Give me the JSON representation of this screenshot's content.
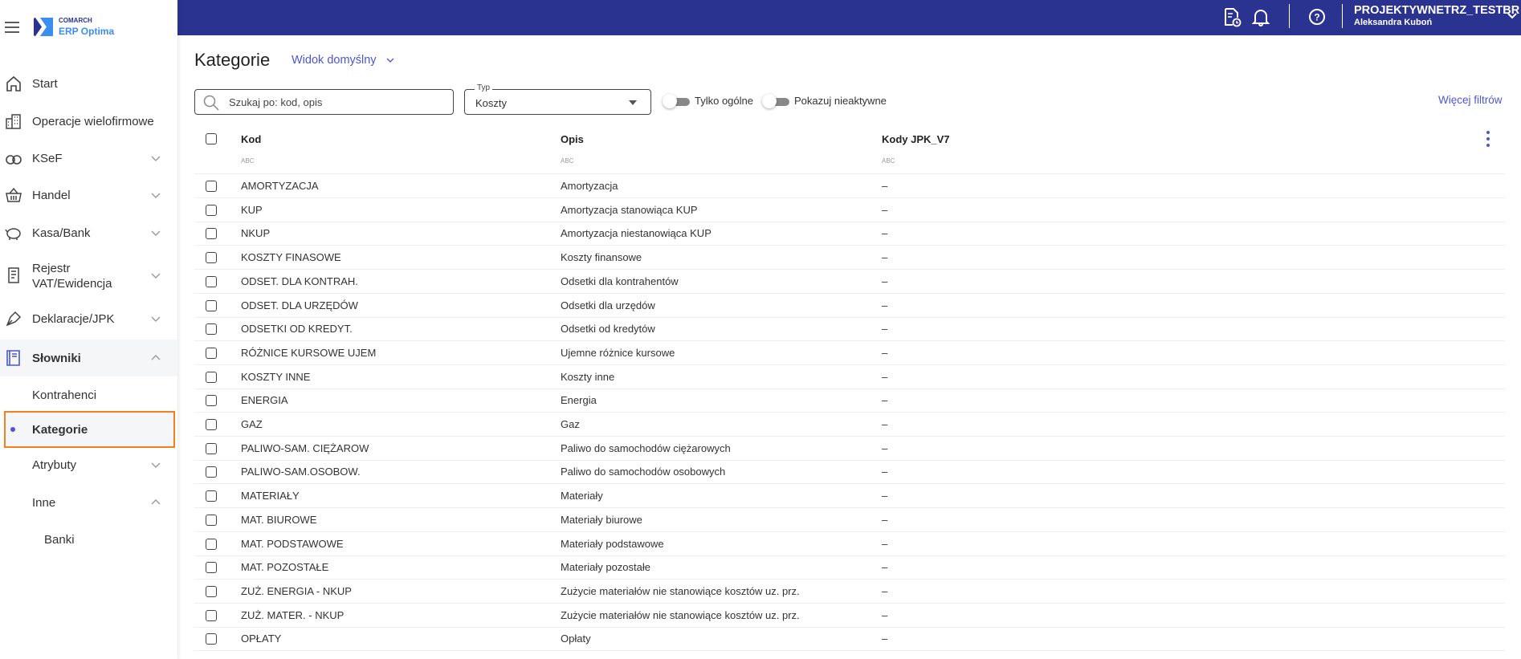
{
  "brand": {
    "company": "COMARCH",
    "product": "ERP Optima"
  },
  "topbar": {
    "company_name": "PROJEKTYWNETRZ_TESTBR",
    "user_name": "Aleksandra Kuboń"
  },
  "sidebar": {
    "items": [
      {
        "label": "Start",
        "icon": "home-icon"
      },
      {
        "label": "Operacje wielofirmowe",
        "icon": "buildings-icon"
      },
      {
        "label": "KSeF",
        "icon": "ksef-icon"
      },
      {
        "label": "Handel",
        "icon": "basket-icon"
      },
      {
        "label": "Kasa/Bank",
        "icon": "piggy-bank-icon"
      },
      {
        "label": "Rejestr VAT/Ewidencja",
        "icon": "register-icon"
      },
      {
        "label": "Deklaracje/JPK",
        "icon": "pen-icon"
      },
      {
        "label": "Słowniki",
        "icon": "book-icon"
      }
    ],
    "sub_items": [
      {
        "label": "Kontrahenci"
      },
      {
        "label": "Kategorie"
      },
      {
        "label": "Atrybuty"
      },
      {
        "label": "Inne"
      },
      {
        "label": "Banki"
      }
    ]
  },
  "page": {
    "title": "Kategorie",
    "view": "Widok domyślny"
  },
  "filters": {
    "search_placeholder": "Szukaj po: kod, opis",
    "type_label": "Typ",
    "type_value": "Koszty",
    "toggle_general": "Tylko ogólne",
    "toggle_inactive": "Pokazuj nieaktywne",
    "more_filters": "Więcej filtrów"
  },
  "table": {
    "columns": [
      "Kod",
      "Opis",
      "Kody JPK_V7"
    ],
    "filter_hint": "ABC",
    "rows": [
      [
        "AMORTYZACJA",
        "Amortyzacja",
        "–"
      ],
      [
        "KUP",
        "Amortyzacja stanowiąca KUP",
        "–"
      ],
      [
        "NKUP",
        "Amortyzacja niestanowiąca KUP",
        "–"
      ],
      [
        "KOSZTY FINASOWE",
        "Koszty finansowe",
        "–"
      ],
      [
        "ODSET. DLA KONTRAH.",
        "Odsetki dla kontrahentów",
        "–"
      ],
      [
        "ODSET. DLA URZĘDÓW",
        "Odsetki dla urzędów",
        "–"
      ],
      [
        "ODSETKI OD KREDYT.",
        "Odsetki od kredytów",
        "–"
      ],
      [
        "RÓŻNICE KURSOWE UJEM",
        "Ujemne różnice kursowe",
        "–"
      ],
      [
        "KOSZTY INNE",
        "Koszty inne",
        "–"
      ],
      [
        "ENERGIA",
        "Energia",
        "–"
      ],
      [
        "GAZ",
        "Gaz",
        "–"
      ],
      [
        "PALIWO-SAM. CIĘŻAROW",
        "Paliwo do samochodów ciężarowych",
        "–"
      ],
      [
        "PALIWO-SAM.OSOBOW.",
        "Paliwo do samochodów osobowych",
        "–"
      ],
      [
        "MATERIAŁY",
        "Materiały",
        "–"
      ],
      [
        "MAT. BIUROWE",
        "Materiały biurowe",
        "–"
      ],
      [
        "MAT. PODSTAWOWE",
        "Materiały podstawowe",
        "–"
      ],
      [
        "MAT. POZOSTAŁE",
        "Materiały pozostałe",
        "–"
      ],
      [
        "ZUŻ. ENERGIA - NKUP",
        "Zużycie materiałów nie stanowiące kosztów uz. prz.",
        "–"
      ],
      [
        "ZUŻ. MATER. - NKUP",
        "Zużycie materiałów nie stanowiące kosztów uz. prz.",
        "–"
      ],
      [
        "OPŁATY",
        "Opłaty",
        "–"
      ]
    ]
  },
  "colors": {
    "topbar": "#2a3390",
    "accent": "#4a55d8",
    "highlight": "#f57f20"
  }
}
